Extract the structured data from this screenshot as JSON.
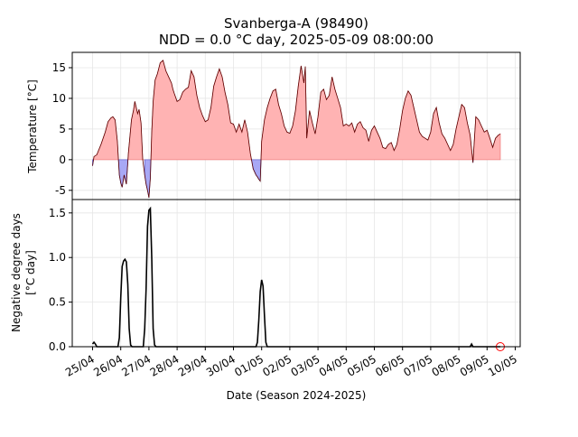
{
  "title_line1": "Svanberga-A (98490)",
  "title_line2": "NDD = 0.0 °C day, 2025-05-09 08:00:00",
  "top_ylabel": "Temperature [°C]",
  "bottom_ylabel_line1": "Negative degree days",
  "bottom_ylabel_line2": "[°C day]",
  "xlabel": "Date (Season 2024-2025)",
  "colors": {
    "warm_fill": "#ffb3b3",
    "warm_edge": "#f08080",
    "cold_fill": "#a8a8f5",
    "cold_edge": "#6666cc",
    "line": "#000000",
    "marker": "#ff0000"
  },
  "chart_data": [
    {
      "type": "area",
      "ylabel": "Temperature [°C]",
      "ylim": [
        -6.5,
        17.5
      ],
      "yticks": [
        -5,
        0,
        5,
        10,
        15
      ],
      "grid": true,
      "x_unit": "days since 25/04 00:00",
      "series": [
        {
          "x": [
            0,
            0.05,
            0.15,
            0.3,
            0.45,
            0.55,
            0.65,
            0.72,
            0.8,
            0.88,
            0.95,
            1.0,
            1.05,
            1.12,
            1.2,
            1.27,
            1.33,
            1.38,
            1.45,
            1.5,
            1.55,
            1.6,
            1.65,
            1.72,
            1.78,
            1.85,
            1.9,
            1.95,
            2.0,
            2.05,
            2.1,
            2.15,
            2.22,
            2.3,
            2.4,
            2.5,
            2.6,
            2.7,
            2.8,
            2.85,
            2.9,
            3.0,
            3.1,
            3.2,
            3.3,
            3.4,
            3.5,
            3.6,
            3.7,
            3.8,
            3.9,
            4.0,
            4.1,
            4.2,
            4.3,
            4.4,
            4.5,
            4.6,
            4.7,
            4.8,
            4.9,
            5.0,
            5.1,
            5.2,
            5.3,
            5.4,
            5.5,
            5.6,
            5.7,
            5.8,
            5.85,
            5.9,
            5.95,
            6.0,
            6.1,
            6.2,
            6.3,
            6.4,
            6.5,
            6.6,
            6.7,
            6.8,
            6.9,
            7.0,
            7.1,
            7.2,
            7.3,
            7.4,
            7.5,
            7.55,
            7.6,
            7.7,
            7.8,
            7.9,
            8.0,
            8.1,
            8.2,
            8.3,
            8.4,
            8.5,
            8.6,
            8.7,
            8.8,
            8.9,
            9.0,
            9.1,
            9.2,
            9.3,
            9.4,
            9.5,
            9.6,
            9.7,
            9.8,
            9.9,
            10.0,
            10.1,
            10.2,
            10.3,
            10.4,
            10.5,
            10.6,
            10.7,
            10.8,
            10.9,
            11.0,
            11.1,
            11.2,
            11.3,
            11.4,
            11.5,
            11.6,
            11.7,
            11.8,
            11.9,
            12.0,
            12.1,
            12.2,
            12.3,
            12.4,
            12.5,
            12.6,
            12.7,
            12.8,
            12.9,
            13.0,
            13.1,
            13.2,
            13.3,
            13.4,
            13.5,
            13.6,
            13.7,
            13.8,
            13.9,
            14.0,
            14.1,
            14.2,
            14.3,
            14.4,
            14.47
          ],
          "y": [
            -1,
            0.5,
            0.8,
            2.5,
            4.5,
            6.2,
            6.8,
            7.0,
            6.5,
            3,
            -2.5,
            -3.8,
            -4.5,
            -2.5,
            -4,
            1,
            4,
            6.5,
            8,
            9.5,
            8.5,
            7.5,
            8.2,
            6,
            0,
            -2.5,
            -4,
            -5,
            -6.2,
            -3,
            4.5,
            9.5,
            13,
            14,
            15.8,
            16.2,
            14.5,
            13.5,
            12.5,
            11.5,
            10.8,
            9.5,
            9.8,
            11,
            11.5,
            11.8,
            14.5,
            13.5,
            10.5,
            8.5,
            7.2,
            6.2,
            6.5,
            8.5,
            12,
            13.5,
            14.8,
            13.5,
            11,
            9,
            6,
            5.8,
            4.5,
            5.8,
            4.5,
            6.5,
            4.5,
            1,
            -1.5,
            -2.5,
            -2.8,
            -3.2,
            -3.5,
            3,
            6.5,
            8.5,
            10,
            11.2,
            11.5,
            9,
            7.5,
            5.5,
            4.5,
            4.3,
            5.5,
            8,
            12,
            15.3,
            12.5,
            15.2,
            3.5,
            8,
            6,
            4.2,
            7,
            11,
            11.5,
            9.8,
            10.5,
            13.5,
            11.5,
            10,
            8.5,
            5.5,
            5.8,
            5.5,
            6,
            4.5,
            5.8,
            6.2,
            5.2,
            4.8,
            3,
            4.8,
            5.5,
            4.5,
            3.5,
            2,
            1.8,
            2.5,
            2.8,
            1.5,
            2.5,
            5,
            8,
            10,
            11.2,
            10.5,
            8.5,
            6.5,
            4.5,
            3.8,
            3.5,
            3.2,
            4.5,
            7.5,
            8.5,
            6,
            4.2,
            3.5,
            2.5,
            1.5,
            2.5,
            5,
            7,
            9,
            8.5,
            6,
            4,
            -0.5,
            7,
            6.5,
            5.5,
            4.5,
            4.8,
            3.5,
            2,
            3.5,
            4,
            4.2
          ]
        }
      ]
    },
    {
      "type": "line",
      "ylabel": "Negative degree days [°C day]",
      "ylim": [
        0,
        1.65
      ],
      "yticks": [
        "0.0",
        "0.5",
        "1.0",
        "1.5"
      ],
      "grid": true,
      "xlabel": "Date (Season 2024-2025)",
      "x_tick_labels": [
        "25/04",
        "26/04",
        "27/04",
        "28/04",
        "29/04",
        "30/04",
        "01/05",
        "02/05",
        "03/05",
        "04/05",
        "05/05",
        "06/05",
        "07/05",
        "08/05",
        "09/05",
        "10/05"
      ],
      "series": [
        {
          "x": [
            0,
            0.05,
            0.1,
            0.15,
            0.9,
            0.95,
            1.0,
            1.05,
            1.1,
            1.15,
            1.2,
            1.25,
            1.3,
            1.35,
            1.4,
            1.45,
            1.5,
            1.8,
            1.85,
            1.9,
            1.95,
            2.0,
            2.05,
            2.1,
            2.15,
            2.2,
            2.25,
            5.8,
            5.85,
            5.9,
            5.95,
            6.0,
            6.05,
            6.1,
            6.15,
            6.2,
            13.4,
            13.45,
            13.5,
            14.47
          ],
          "y": [
            0.03,
            0.05,
            0.03,
            0,
            0,
            0.1,
            0.55,
            0.9,
            0.96,
            0.98,
            0.95,
            0.7,
            0.2,
            0.02,
            0,
            0,
            0,
            0,
            0.2,
            0.65,
            1.35,
            1.53,
            1.55,
            1.0,
            0.2,
            0.02,
            0,
            0,
            0.05,
            0.3,
            0.62,
            0.75,
            0.68,
            0.35,
            0.05,
            0,
            0,
            0.03,
            0,
            0
          ]
        }
      ],
      "marker": {
        "x": 14.47,
        "y": 0
      }
    }
  ]
}
